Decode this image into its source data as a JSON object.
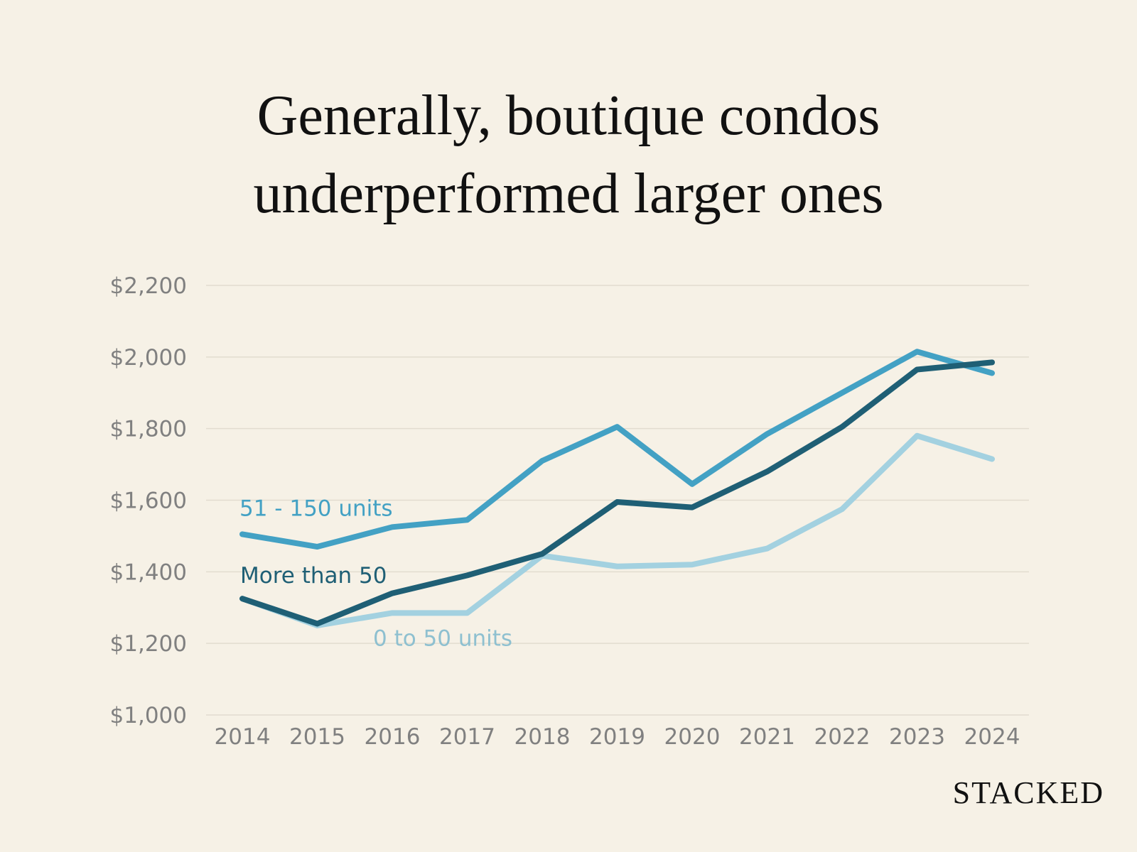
{
  "chart_data": {
    "type": "line",
    "title": "Generally, boutique condos underperformed larger ones",
    "title_lines": [
      "Generally, boutique condos",
      "underperformed larger ones"
    ],
    "xlabel": "",
    "ylabel": "",
    "x": [
      "2014",
      "2015",
      "2016",
      "2017",
      "2018",
      "2019",
      "2020",
      "2021",
      "2022",
      "2023",
      "2024"
    ],
    "ylim": [
      1000,
      2200
    ],
    "yticks": [
      1000,
      1200,
      1400,
      1600,
      1800,
      2000,
      2200
    ],
    "ytick_labels": [
      "$1,000",
      "$1,200",
      "$1,400",
      "$1,600",
      "$1,800",
      "$2,000",
      "$2,200"
    ],
    "grid": true,
    "series": [
      {
        "name": "0 to 50 units",
        "color": "#a3d1e0",
        "values": [
          1325,
          1250,
          1285,
          1285,
          1445,
          1415,
          1420,
          1465,
          1575,
          1780,
          1715
        ],
        "label_at": "2016"
      },
      {
        "name": "51 - 150 units",
        "color": "#43a1c4",
        "values": [
          1505,
          1470,
          1525,
          1545,
          1710,
          1805,
          1645,
          1785,
          1900,
          2015,
          1955
        ],
        "label_at": "2014"
      },
      {
        "name": "More than 50",
        "color": "#1f5f75",
        "values": [
          1325,
          1255,
          1340,
          1390,
          1450,
          1595,
          1580,
          1680,
          1805,
          1965,
          1985
        ],
        "label_at": "2014"
      }
    ]
  },
  "brand": "STACKED"
}
